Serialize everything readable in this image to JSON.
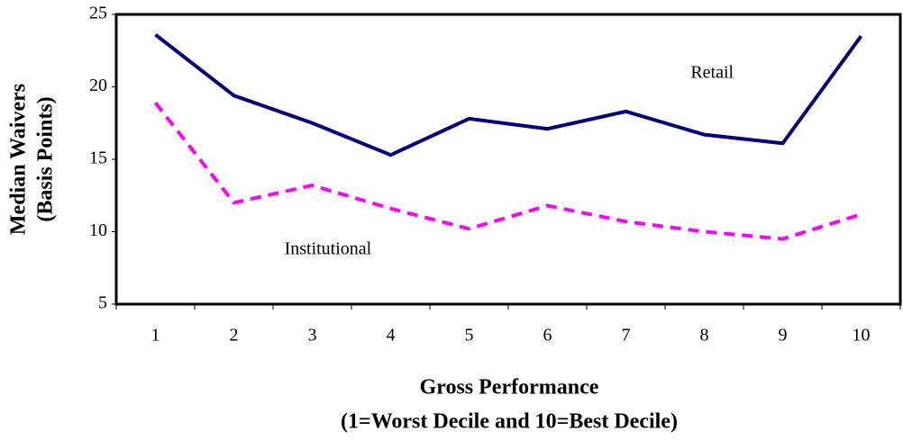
{
  "chart_data": {
    "type": "line",
    "categories": [
      "1",
      "2",
      "3",
      "4",
      "5",
      "6",
      "7",
      "8",
      "9",
      "10"
    ],
    "series": [
      {
        "name": "Retail",
        "color": "#000080",
        "dash": false,
        "values": [
          23.6,
          19.4,
          17.5,
          15.3,
          17.8,
          17.1,
          18.3,
          16.7,
          16.1,
          23.5
        ]
      },
      {
        "name": "Institutional",
        "color": "#ff00ff",
        "dash": true,
        "values": [
          18.9,
          12.0,
          13.2,
          11.6,
          10.2,
          11.8,
          10.7,
          10.0,
          9.5,
          11.2
        ]
      }
    ],
    "ylim": [
      5,
      25
    ],
    "yticks": [
      5,
      10,
      15,
      20,
      25
    ],
    "grid": false,
    "ylabel": [
      "Median Waivers",
      "(Basis Points)"
    ],
    "xlabel": [
      "Gross Performance",
      "(1=Worst Decile and 10=Best Decile)"
    ]
  }
}
